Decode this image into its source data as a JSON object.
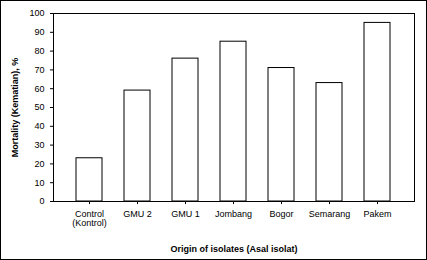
{
  "chart_data": {
    "type": "bar",
    "categories": [
      "Control\n(Kontrol)",
      "GMU 2",
      "GMU 1",
      "Jombang",
      "Bogor",
      "Semarang",
      "Pakem"
    ],
    "values": [
      23,
      59,
      76,
      85,
      71,
      63,
      95
    ],
    "color": "#ffffff",
    "x_label": "Origin of isolates (Asal isolat)",
    "y_label": "Mortality (Kematian), %",
    "ylim": [
      0,
      100
    ],
    "yticks": [
      0,
      10,
      20,
      30,
      40,
      50,
      60,
      70,
      80,
      90,
      100
    ],
    "grid": false
  }
}
